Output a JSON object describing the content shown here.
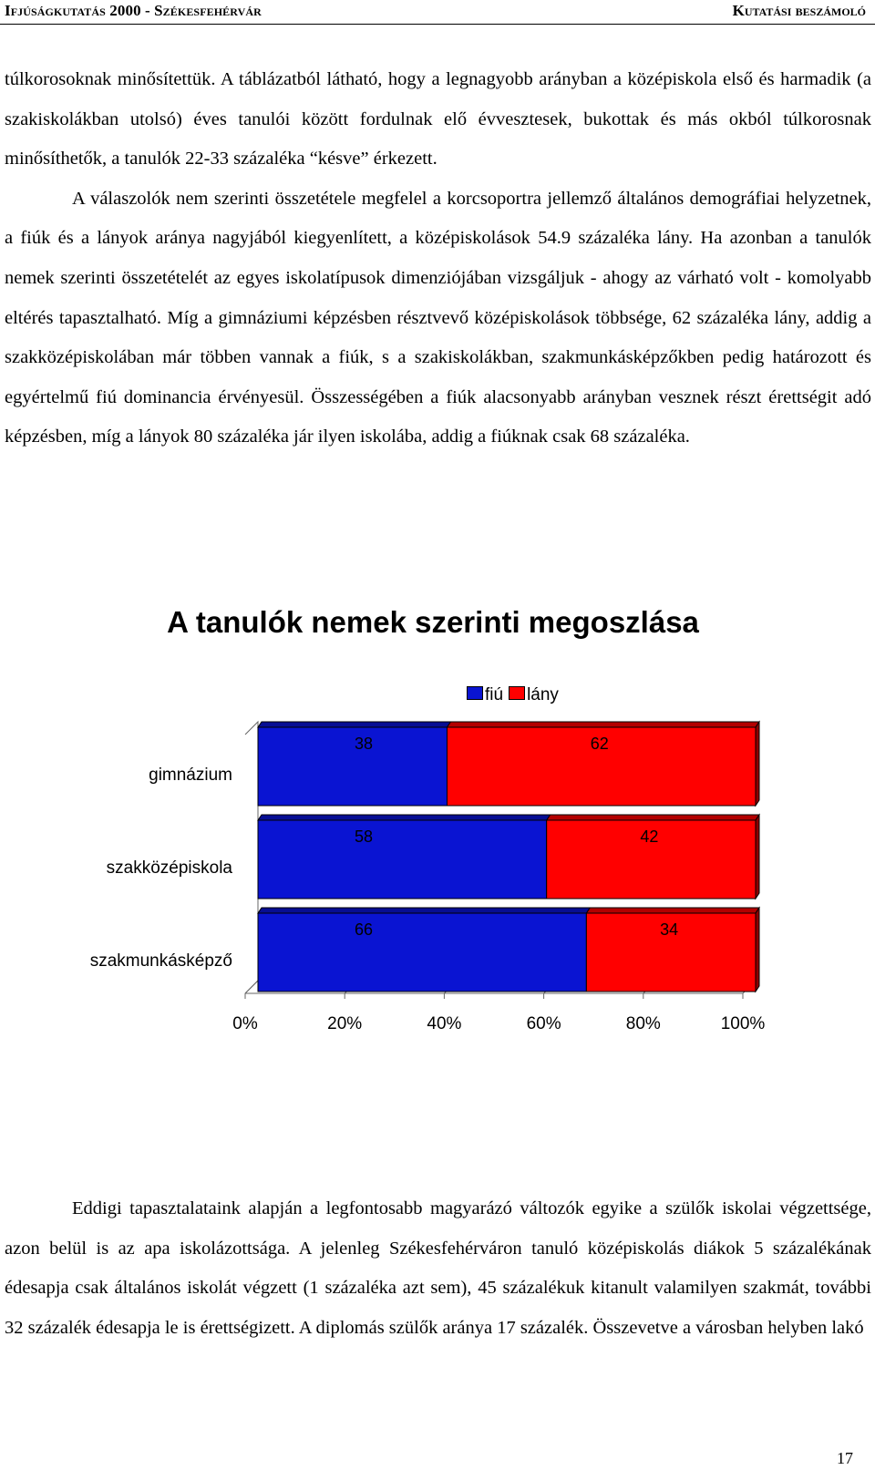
{
  "header": {
    "left": "Ifjúságkutatás 2000 - Székesfehérvár",
    "right": "Kutatási beszámoló"
  },
  "paragraphs": {
    "p1": "túlkorosoknak minősítettük. A táblázatból látható, hogy a legnagyobb arányban a középiskola első és harmadik (a szakiskolákban utolsó) éves tanulói között fordulnak elő évvesztesek, bukottak és más okból túlkorosnak minősíthetők, a tanulók 22-33 százaléka “késve” érkezett.",
    "p2": "A válaszolók nem szerinti összetétele megfelel a korcsoportra jellemző általános demográfiai helyzetnek, a fiúk és a lányok aránya nagyjából kiegyenlített, a középiskolások 54.9 százaléka lány. Ha azonban a tanulók nemek szerinti összetételét az egyes iskolatípusok dimenziójában vizsgáljuk - ahogy az várható volt  - komolyabb eltérés tapasztalható. Míg a gimnáziumi képzésben résztvevő középiskolások többsége, 62 százaléka lány, addig a szakközépiskolában már többen vannak a fiúk, s a szakiskolákban, szakmunkásképzőkben pedig határozott és egyértelmű fiú dominancia érvényesül. Összességében a fiúk alacsonyabb arányban vesznek részt érettségit adó képzésben, míg a lányok 80 százaléka jár ilyen iskolába, addig a fiúknak csak 68 százaléka.",
    "p3": "Eddigi tapasztalataink alapján a legfontosabb magyarázó változók egyike a szülők iskolai végzettsége, azon belül is az apa iskolázottsága. A jelenleg Székesfehérváron tanuló középiskolás diákok 5 százalékának édesapja csak általános iskolát végzett (1 százaléka azt sem), 45 százalékuk kitanult valamilyen szakmát, további 32 százalék édesapja le is érettségizett. A diplomás szülők aránya 17 százalék. Összevetve a városban helyben lakó"
  },
  "chart_data": {
    "type": "bar",
    "orientation": "horizontal",
    "stacked": "percent",
    "title": "A tanulók nemek szerinti megoszlása",
    "categories": [
      "gimnázium",
      "szakközépiskola",
      "szakmunkásképző"
    ],
    "series": [
      {
        "name": "fiú",
        "values": [
          38,
          58,
          66
        ],
        "color": "#0a14d2"
      },
      {
        "name": "lány",
        "values": [
          62,
          42,
          34
        ],
        "color": "#ff0000"
      }
    ],
    "xticks": [
      "0%",
      "20%",
      "40%",
      "60%",
      "80%",
      "100%"
    ],
    "xlim": [
      0,
      100
    ],
    "legend_position": "top",
    "grid": false,
    "data_labels": true
  },
  "page_number": "17"
}
